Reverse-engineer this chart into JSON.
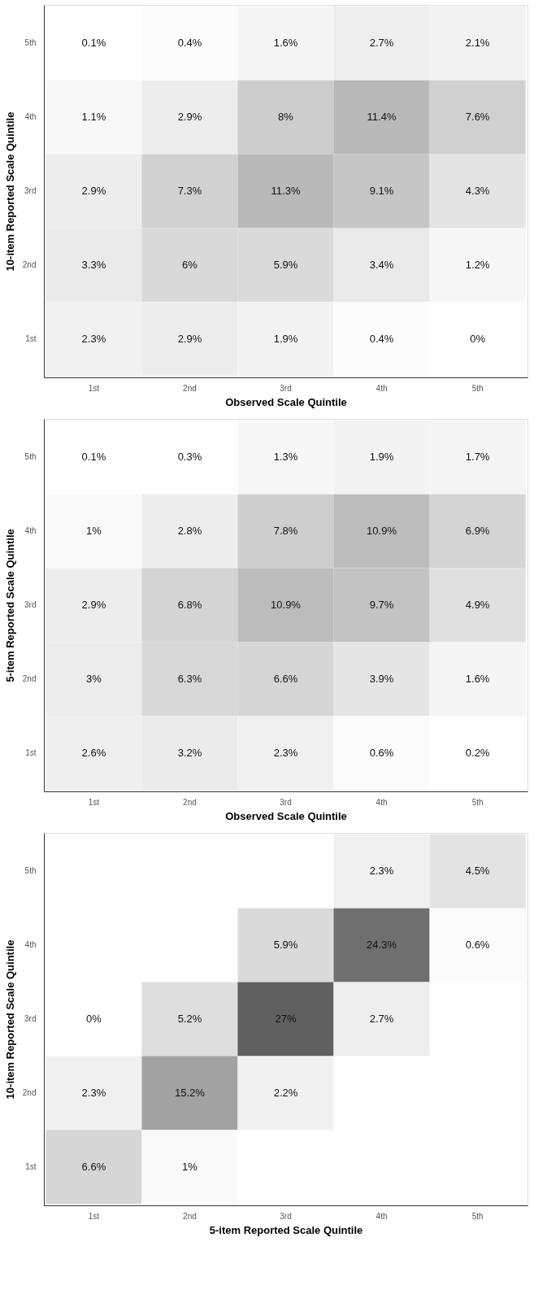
{
  "chart_data": [
    {
      "type": "heatmap",
      "xlabel": "Observed Scale Quintile",
      "ylabel": "10-item Reported Scale Quintile",
      "data_labels": true,
      "categories": [
        "1st",
        "2nd",
        "3rd",
        "4th",
        "5th"
      ],
      "y_categories": [
        "5th",
        "4th",
        "3rd",
        "2nd",
        "1st"
      ],
      "cells": [
        [
          0.1,
          0.4,
          1.6,
          2.7,
          2.1
        ],
        [
          1.1,
          2.9,
          8,
          11.4,
          7.6
        ],
        [
          2.9,
          7.3,
          11.3,
          9.1,
          4.3
        ],
        [
          3.3,
          6,
          5.9,
          3.4,
          1.2
        ],
        [
          2.3,
          2.9,
          1.9,
          0.4,
          0
        ]
      ],
      "cell_labels": [
        [
          "0.1%",
          "0.4%",
          "1.6%",
          "2.7%",
          "2.1%"
        ],
        [
          "1.1%",
          "2.9%",
          "8%",
          "11.4%",
          "7.6%"
        ],
        [
          "2.9%",
          "7.3%",
          "11.3%",
          "9.1%",
          "4.3%"
        ],
        [
          "3.3%",
          "6%",
          "5.9%",
          "3.4%",
          "1.2%"
        ],
        [
          "2.3%",
          "2.9%",
          "1.9%",
          "0.4%",
          "0%"
        ]
      ]
    },
    {
      "type": "heatmap",
      "xlabel": "Observed Scale Quintile",
      "ylabel": "5-item Reported Scale Quintile",
      "data_labels": true,
      "categories": [
        "1st",
        "2nd",
        "3rd",
        "4th",
        "5th"
      ],
      "y_categories": [
        "5th",
        "4th",
        "3rd",
        "2nd",
        "1st"
      ],
      "cells": [
        [
          0.1,
          0.3,
          1.3,
          1.9,
          1.7
        ],
        [
          1,
          2.8,
          7.8,
          10.9,
          6.9
        ],
        [
          2.9,
          6.8,
          10.9,
          9.7,
          4.9
        ],
        [
          3,
          6.3,
          6.6,
          3.9,
          1.6
        ],
        [
          2.6,
          3.2,
          2.3,
          0.6,
          0.2
        ]
      ],
      "cell_labels": [
        [
          "0.1%",
          "0.3%",
          "1.3%",
          "1.9%",
          "1.7%"
        ],
        [
          "1%",
          "2.8%",
          "7.8%",
          "10.9%",
          "6.9%"
        ],
        [
          "2.9%",
          "6.8%",
          "10.9%",
          "9.7%",
          "4.9%"
        ],
        [
          "3%",
          "6.3%",
          "6.6%",
          "3.9%",
          "1.6%"
        ],
        [
          "2.6%",
          "3.2%",
          "2.3%",
          "0.6%",
          "0.2%"
        ]
      ]
    },
    {
      "type": "heatmap",
      "xlabel": "5-item Reported Scale Quintile",
      "ylabel": "10-item Reported Scale Quintile",
      "data_labels": true,
      "categories": [
        "1st",
        "2nd",
        "3rd",
        "4th",
        "5th"
      ],
      "y_categories": [
        "5th",
        "4th",
        "3rd",
        "2nd",
        "1st"
      ],
      "cells": [
        [
          null,
          null,
          null,
          2.3,
          4.5
        ],
        [
          null,
          null,
          5.9,
          24.3,
          0.6
        ],
        [
          0,
          5.2,
          27,
          2.7,
          null
        ],
        [
          2.3,
          15.2,
          2.2,
          null,
          null
        ],
        [
          6.6,
          1,
          null,
          null,
          null
        ]
      ],
      "cell_labels": [
        [
          null,
          null,
          null,
          "2.3%",
          "4.5%"
        ],
        [
          null,
          null,
          "5.9%",
          "24.3%",
          "0.6%"
        ],
        [
          "0%",
          "5.2%",
          "27%",
          "2.7%",
          null
        ],
        [
          "2.3%",
          "15.2%",
          "2.2%",
          null,
          null
        ],
        [
          "6.6%",
          "1%",
          null,
          null,
          null
        ]
      ]
    }
  ]
}
